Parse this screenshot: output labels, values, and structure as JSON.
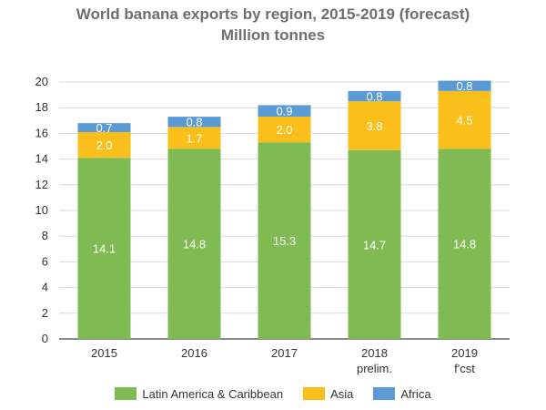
{
  "chart_data": {
    "type": "bar",
    "stacked": true,
    "title": "World banana exports by region, 2015-2019 (forecast)",
    "subtitle": "Million tonnes",
    "categories": [
      {
        "label": "2015",
        "sublabel": ""
      },
      {
        "label": "2016",
        "sublabel": ""
      },
      {
        "label": "2017",
        "sublabel": ""
      },
      {
        "label": "2018",
        "sublabel": "prelim."
      },
      {
        "label": "2019",
        "sublabel": "f'cst"
      }
    ],
    "series": [
      {
        "name": "Latin America & Caribbean",
        "color": "#7fbb52",
        "values": [
          14.1,
          14.8,
          15.3,
          14.7,
          14.8
        ],
        "labels": [
          "14.1",
          "14.8",
          "15.3",
          "14.7",
          "14.8"
        ]
      },
      {
        "name": "Asia",
        "color": "#fbbf1b",
        "values": [
          2.0,
          1.7,
          2.0,
          3.8,
          4.5
        ],
        "labels": [
          "2.0",
          "1.7",
          "2.0",
          "3.8",
          "4.5"
        ]
      },
      {
        "name": "Africa",
        "color": "#5b9bd5",
        "values": [
          0.7,
          0.8,
          0.9,
          0.8,
          0.8
        ],
        "labels": [
          "0.7",
          "0.8",
          "0.9",
          "0.8",
          "0.8"
        ]
      }
    ],
    "ylim": [
      0,
      20
    ],
    "yticks": [
      "0",
      "2",
      "4",
      "6",
      "8",
      "10",
      "12",
      "14",
      "16",
      "18",
      "20"
    ],
    "grid": true,
    "legend_position": "bottom"
  }
}
